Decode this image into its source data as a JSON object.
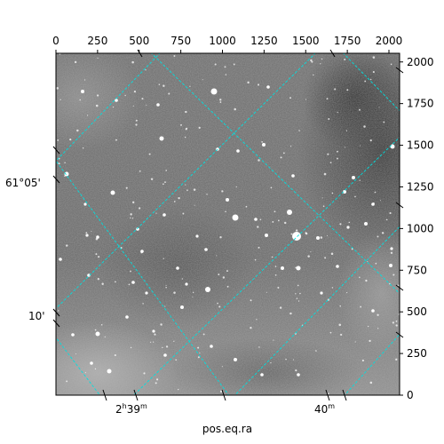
{
  "figure": {
    "x_axis_label": "pos.eq.ra",
    "pixel_ticks_top": [
      "0",
      "250",
      "500",
      "750",
      "1000",
      "1250",
      "1500",
      "1750",
      "2000"
    ],
    "pixel_ticks_right": [
      "0",
      "250",
      "500",
      "750",
      "1000",
      "1250",
      "1500",
      "1750",
      "2000"
    ],
    "ra_tick_labels": [
      {
        "hours": "2",
        "hours_unit": "h",
        "minutes": "39",
        "minutes_unit": "m"
      },
      {
        "hours": "",
        "hours_unit": "",
        "minutes": "40",
        "minutes_unit": "m"
      }
    ],
    "dec_tick_labels": [
      "61°05'",
      "10'"
    ],
    "grid_color": "#00e0e0",
    "image_tone": "grayscale star field"
  }
}
